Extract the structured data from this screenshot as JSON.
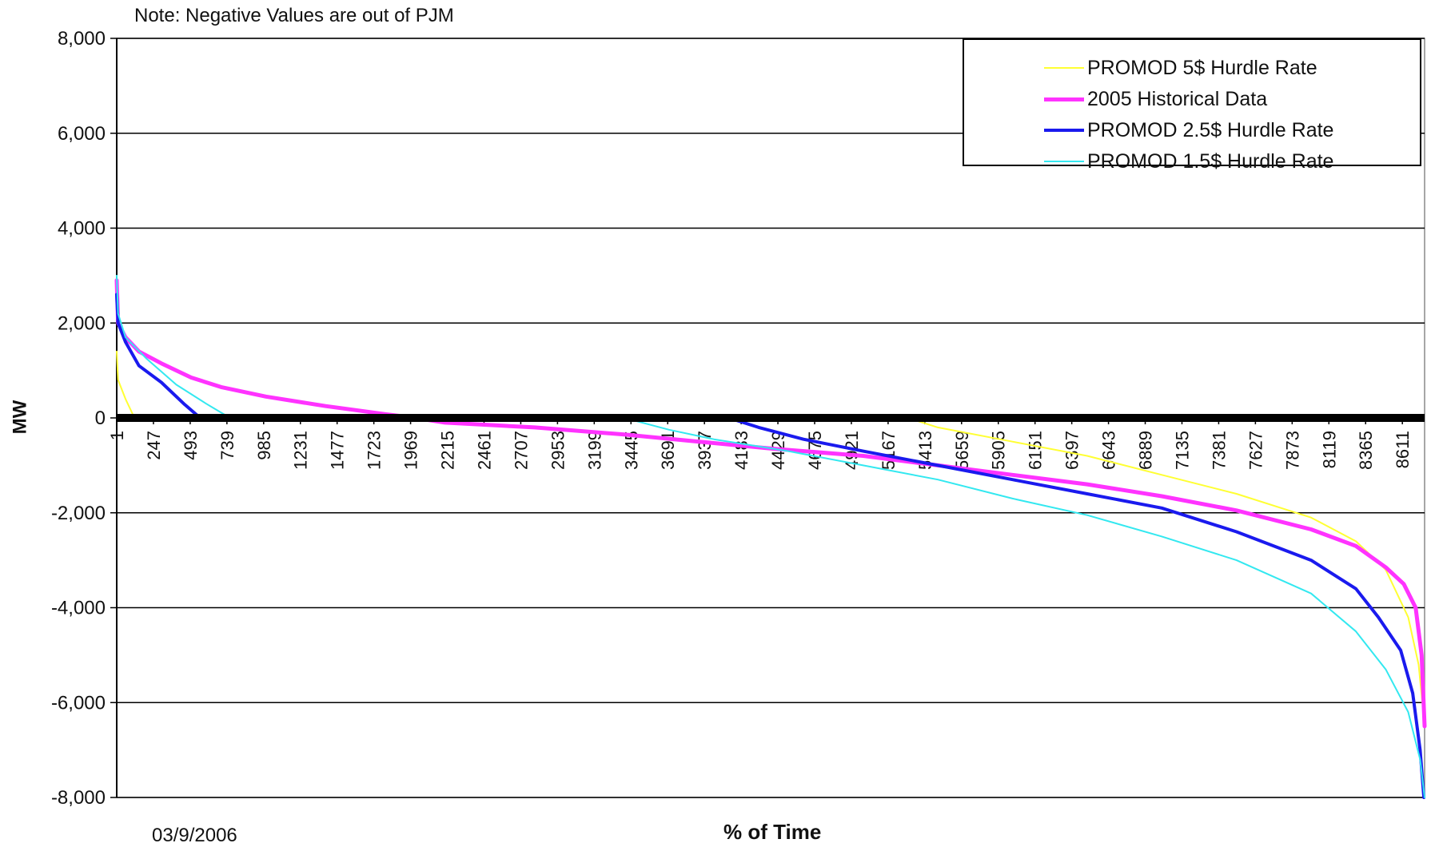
{
  "note": "Note: Negative Values are out of PJM",
  "date": "03/9/2006",
  "chart_data": {
    "type": "line",
    "title": "",
    "xlabel": "% of Time",
    "ylabel": "MW",
    "ylim": [
      -8000,
      8000
    ],
    "xlim": [
      1,
      8760
    ],
    "yticks": [
      8000,
      6000,
      4000,
      2000,
      0,
      -2000,
      -4000,
      -6000,
      -8000
    ],
    "ytick_labels": [
      "8,000",
      "6,000",
      "4,000",
      "2,000",
      "0",
      "-2,000",
      "-4,000",
      "-6,000",
      "-8,000"
    ],
    "xticks": [
      1,
      247,
      493,
      739,
      985,
      1231,
      1477,
      1723,
      1969,
      2215,
      2461,
      2707,
      2953,
      3199,
      3445,
      3691,
      3937,
      4183,
      4429,
      4675,
      4921,
      5167,
      5413,
      5659,
      5905,
      6151,
      6397,
      6643,
      6889,
      7135,
      7381,
      7627,
      7873,
      8119,
      8365,
      8611
    ],
    "grid": true,
    "legend_position": "top-right",
    "series": [
      {
        "name": "PROMOD  5$ Hurdle Rate",
        "color": "#ffff33",
        "points": [
          [
            1,
            1400
          ],
          [
            10,
            800
          ],
          [
            60,
            400
          ],
          [
            120,
            0
          ],
          [
            500,
            0
          ],
          [
            2000,
            0
          ],
          [
            4000,
            0
          ],
          [
            5300,
            0
          ],
          [
            5500,
            -200
          ],
          [
            6000,
            -500
          ],
          [
            6500,
            -800
          ],
          [
            7000,
            -1200
          ],
          [
            7500,
            -1600
          ],
          [
            8000,
            -2100
          ],
          [
            8300,
            -2600
          ],
          [
            8500,
            -3200
          ],
          [
            8650,
            -4200
          ],
          [
            8720,
            -5200
          ],
          [
            8745,
            -6000
          ]
        ]
      },
      {
        "name": "2005 Historical Data",
        "color": "#ff33ff",
        "points": [
          [
            1,
            2900
          ],
          [
            10,
            2000
          ],
          [
            60,
            1700
          ],
          [
            150,
            1400
          ],
          [
            300,
            1150
          ],
          [
            500,
            850
          ],
          [
            700,
            650
          ],
          [
            1000,
            450
          ],
          [
            1400,
            250
          ],
          [
            1800,
            80
          ],
          [
            2000,
            0
          ],
          [
            2200,
            -100
          ],
          [
            2800,
            -200
          ],
          [
            3400,
            -350
          ],
          [
            3900,
            -500
          ],
          [
            4400,
            -650
          ],
          [
            5000,
            -800
          ],
          [
            5500,
            -1000
          ],
          [
            6000,
            -1200
          ],
          [
            6500,
            -1400
          ],
          [
            7000,
            -1650
          ],
          [
            7500,
            -1950
          ],
          [
            8000,
            -2350
          ],
          [
            8300,
            -2700
          ],
          [
            8500,
            -3150
          ],
          [
            8620,
            -3500
          ],
          [
            8700,
            -4000
          ],
          [
            8740,
            -5000
          ],
          [
            8760,
            -6500
          ]
        ]
      },
      {
        "name": "PROMOD  2.5$ Hurdle Rate",
        "color": "#1a1aee",
        "points": [
          [
            1,
            2600
          ],
          [
            10,
            2000
          ],
          [
            60,
            1600
          ],
          [
            150,
            1100
          ],
          [
            300,
            750
          ],
          [
            450,
            300
          ],
          [
            560,
            0
          ],
          [
            1200,
            0
          ],
          [
            2500,
            0
          ],
          [
            3500,
            0
          ],
          [
            4100,
            0
          ],
          [
            4300,
            -200
          ],
          [
            4600,
            -450
          ],
          [
            5000,
            -700
          ],
          [
            5500,
            -1000
          ],
          [
            6000,
            -1300
          ],
          [
            6500,
            -1600
          ],
          [
            7000,
            -1900
          ],
          [
            7500,
            -2400
          ],
          [
            8000,
            -3000
          ],
          [
            8300,
            -3600
          ],
          [
            8450,
            -4200
          ],
          [
            8600,
            -4900
          ],
          [
            8680,
            -5800
          ],
          [
            8730,
            -7000
          ],
          [
            8755,
            -8000
          ]
        ]
      },
      {
        "name": "PROMOD  1.5$ Hurdle Rate",
        "color": "#33e8f0",
        "points": [
          [
            1,
            3000
          ],
          [
            10,
            2200
          ],
          [
            60,
            1700
          ],
          [
            200,
            1250
          ],
          [
            400,
            700
          ],
          [
            600,
            300
          ],
          [
            760,
            0
          ],
          [
            1500,
            0
          ],
          [
            3000,
            0
          ],
          [
            3400,
            0
          ],
          [
            3700,
            -250
          ],
          [
            4000,
            -450
          ],
          [
            4500,
            -700
          ],
          [
            5000,
            -1000
          ],
          [
            5500,
            -1300
          ],
          [
            6000,
            -1700
          ],
          [
            6500,
            -2050
          ],
          [
            7000,
            -2500
          ],
          [
            7500,
            -3000
          ],
          [
            8000,
            -3700
          ],
          [
            8300,
            -4500
          ],
          [
            8500,
            -5300
          ],
          [
            8650,
            -6200
          ],
          [
            8730,
            -7200
          ],
          [
            8760,
            -8000
          ]
        ]
      }
    ]
  }
}
